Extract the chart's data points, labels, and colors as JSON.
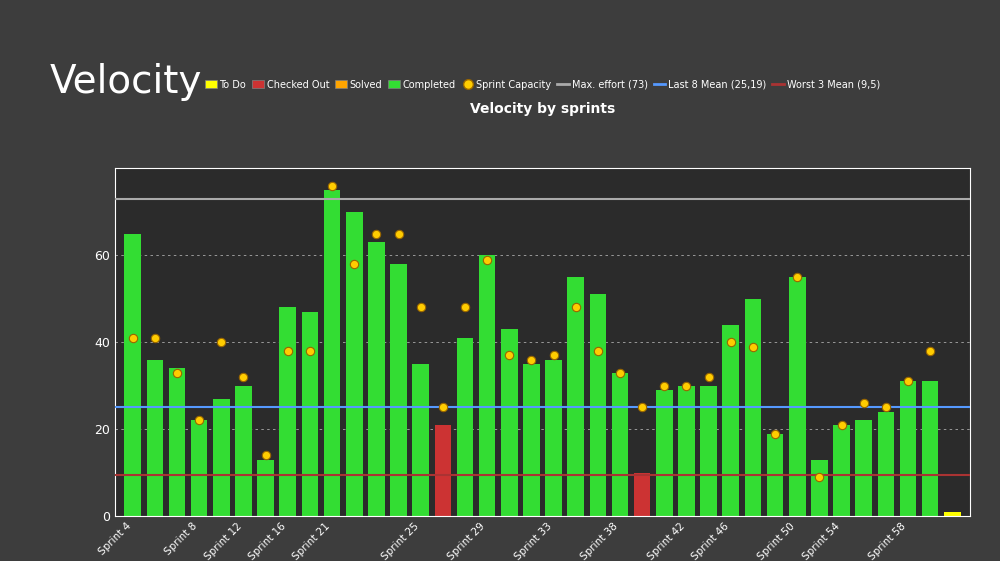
{
  "title": "Velocity",
  "chart_title": "Velocity by sprints",
  "background_outer": "#3d3d3d",
  "background_header": "#3d3d3d",
  "background_chart_outer": "#f0f0f0",
  "background_chart": "#2b2b2b",
  "max_effort": 73,
  "last8_mean": 25.19,
  "worst3_mean": 9.5,
  "ylim": [
    0,
    80
  ],
  "color_completed": "#33dd33",
  "color_solved": "#ffa500",
  "color_checked": "#cc3333",
  "color_todo": "#ffff00",
  "color_capacity": "#ffcc00",
  "color_max": "#aaaaaa",
  "color_last8": "#5599ff",
  "color_worst3": "#aa3333",
  "bars": [
    {
      "completed": 65,
      "checked": 0,
      "cap": 41,
      "todo": 0
    },
    {
      "completed": 36,
      "checked": 0,
      "cap": 41,
      "todo": 0
    },
    {
      "completed": 34,
      "checked": 0,
      "cap": 33,
      "todo": 0
    },
    {
      "completed": 22,
      "checked": 0,
      "cap": 22,
      "todo": 0
    },
    {
      "completed": 27,
      "checked": 0,
      "cap": 40,
      "todo": 0
    },
    {
      "completed": 30,
      "checked": 0,
      "cap": 32,
      "todo": 0
    },
    {
      "completed": 13,
      "checked": 0,
      "cap": 14,
      "todo": 0
    },
    {
      "completed": 48,
      "checked": 0,
      "cap": 38,
      "todo": 0
    },
    {
      "completed": 47,
      "checked": 0,
      "cap": 38,
      "todo": 0
    },
    {
      "completed": 75,
      "checked": 0,
      "cap": 76,
      "todo": 0
    },
    {
      "completed": 70,
      "checked": 0,
      "cap": 58,
      "todo": 0
    },
    {
      "completed": 63,
      "checked": 0,
      "cap": 65,
      "todo": 0
    },
    {
      "completed": 58,
      "checked": 0,
      "cap": 65,
      "todo": 0
    },
    {
      "completed": 35,
      "checked": 0,
      "cap": 48,
      "todo": 0
    },
    {
      "completed": 0,
      "checked": 21,
      "cap": 25,
      "todo": 0
    },
    {
      "completed": 41,
      "checked": 0,
      "cap": 48,
      "todo": 0
    },
    {
      "completed": 60,
      "checked": 0,
      "cap": 59,
      "todo": 0
    },
    {
      "completed": 43,
      "checked": 0,
      "cap": 37,
      "todo": 0
    },
    {
      "completed": 35,
      "checked": 0,
      "cap": 36,
      "todo": 0
    },
    {
      "completed": 36,
      "checked": 0,
      "cap": 37,
      "todo": 0
    },
    {
      "completed": 55,
      "checked": 0,
      "cap": 48,
      "todo": 0
    },
    {
      "completed": 51,
      "checked": 0,
      "cap": 38,
      "todo": 0
    },
    {
      "completed": 33,
      "checked": 0,
      "cap": 33,
      "todo": 0
    },
    {
      "completed": 0,
      "checked": 10,
      "cap": 25,
      "todo": 0
    },
    {
      "completed": 29,
      "checked": 0,
      "cap": 30,
      "todo": 0
    },
    {
      "completed": 30,
      "checked": 0,
      "cap": 30,
      "todo": 0
    },
    {
      "completed": 30,
      "checked": 0,
      "cap": 32,
      "todo": 0
    },
    {
      "completed": 44,
      "checked": 0,
      "cap": 40,
      "todo": 0
    },
    {
      "completed": 50,
      "checked": 0,
      "cap": 39,
      "todo": 0
    },
    {
      "completed": 19,
      "checked": 0,
      "cap": 19,
      "todo": 0
    },
    {
      "completed": 55,
      "checked": 0,
      "cap": 55,
      "todo": 0
    },
    {
      "completed": 13,
      "checked": 0,
      "cap": 9,
      "todo": 0
    },
    {
      "completed": 21,
      "checked": 0,
      "cap": 21,
      "todo": 0
    },
    {
      "completed": 22,
      "checked": 0,
      "cap": 26,
      "todo": 0
    },
    {
      "completed": 24,
      "checked": 0,
      "cap": 25,
      "todo": 0
    },
    {
      "completed": 31,
      "checked": 0,
      "cap": 31,
      "todo": 0
    },
    {
      "completed": 31,
      "checked": 0,
      "cap": 38,
      "todo": 0
    },
    {
      "completed": 0,
      "checked": 0,
      "cap": 0,
      "todo": 1
    }
  ],
  "tick_positions": [
    0,
    3,
    5,
    7,
    9,
    13,
    16,
    19,
    22,
    25,
    27,
    30,
    32,
    35
  ],
  "tick_labels": [
    "Sprint 4",
    "Sprint 8",
    "Sprint 12",
    "Sprint 16",
    "Sprint 21",
    "Sprint 25",
    "Sprint 29",
    "Sprint 33",
    "Sprint 38",
    "Sprint 42",
    "Sprint 46",
    "Sprint 50",
    "Sprint 54",
    "Sprint 58"
  ]
}
